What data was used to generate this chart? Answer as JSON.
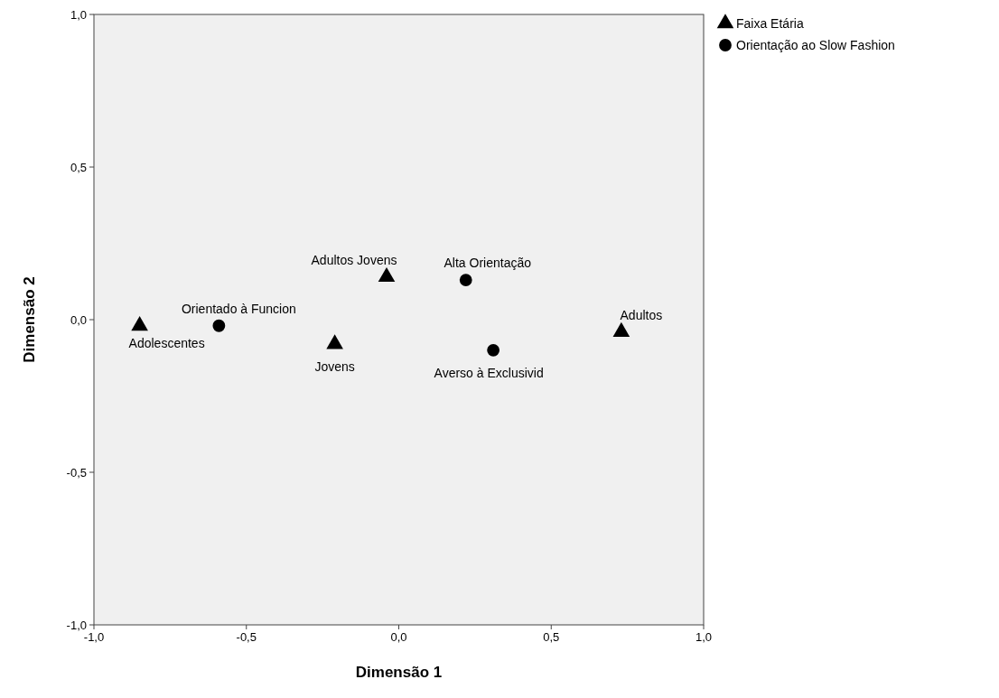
{
  "chart_data": {
    "type": "scatter",
    "xlabel": "Dimensão 1",
    "ylabel": "Dimensão 2",
    "xlim": [
      -1,
      1
    ],
    "ylim": [
      -1,
      1
    ],
    "xticks": [
      {
        "value": -1,
        "label": "-1,0"
      },
      {
        "value": -0.5,
        "label": "-0,5"
      },
      {
        "value": 0,
        "label": "0,0"
      },
      {
        "value": 0.5,
        "label": "0,5"
      },
      {
        "value": 1,
        "label": "1,0"
      }
    ],
    "yticks": [
      {
        "value": -1,
        "label": "-1,0"
      },
      {
        "value": -0.5,
        "label": "-0,5"
      },
      {
        "value": 0,
        "label": "0,0"
      },
      {
        "value": 0.5,
        "label": "0,5"
      },
      {
        "value": 1,
        "label": "1,0"
      }
    ],
    "grid": false,
    "legend": "top right",
    "series": [
      {
        "name": "Faixa Etária",
        "color": "#000000",
        "marker": "triangle",
        "x": [
          -0.85,
          -0.21,
          -0.04,
          0.73
        ],
        "values": [
          -0.02,
          -0.08,
          0.14,
          -0.04
        ]
      },
      {
        "name": "Orientação ao Slow Fashion",
        "color": "#000000",
        "marker": "circle",
        "x": [
          -0.59,
          0.22,
          0.31
        ],
        "values": [
          -0.02,
          0.13,
          -0.1
        ]
      }
    ],
    "annotations": [
      {
        "text": "Adolescentes",
        "x": -0.85,
        "y": -0.02
      },
      {
        "text": "Orientado à Funcion",
        "x": -0.59,
        "y": -0.02
      },
      {
        "text": "Jovens",
        "x": -0.21,
        "y": -0.08
      },
      {
        "text": "Adultos Jovens",
        "x": -0.04,
        "y": 0.14
      },
      {
        "text": "Alta Orientação",
        "x": 0.22,
        "y": 0.13
      },
      {
        "text": "Averso à Exclusivid",
        "x": 0.31,
        "y": -0.1
      },
      {
        "text": "Adultos",
        "x": 0.73,
        "y": -0.04
      }
    ]
  }
}
